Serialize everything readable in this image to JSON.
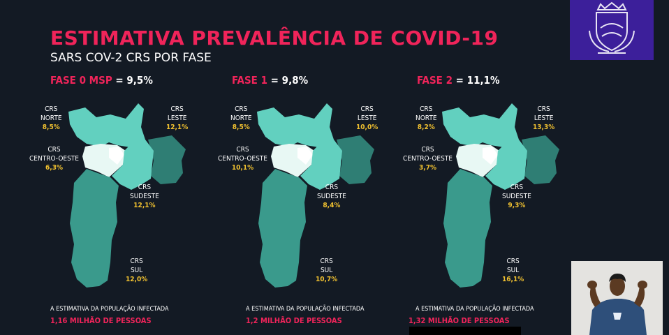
{
  "title": "ESTIMATIVA PREVALÊNCIA DE COVID-19",
  "subtitle": "SARS COV-2 CRS POR FASE",
  "crs": "CRS",
  "region_names": {
    "norte": "NORTE",
    "leste": "LESTE",
    "centro_oeste": "CENTRO-OESTE",
    "sudeste": "SUDESTE",
    "sul": "SUL"
  },
  "footer_caption": "A ESTIMATIVA DA POPULAÇÃO INFECTADA",
  "colors": {
    "accent": "#f0245a",
    "value": "#f2c230",
    "norte": "#62d0bf",
    "leste": "#2f7e74",
    "centro_oeste": "#e8f8f4",
    "sudeste": "#62d0bf",
    "sul": "#3a9a8c",
    "logo_bg": "#3c1f9a"
  },
  "icons": {
    "logo": "city-coat-of-arms-icon"
  },
  "panels": [
    {
      "phase": "FASE 0 MSP",
      "value": " = 9,5%",
      "norte": "8,5%",
      "leste": "12,1%",
      "centro_oeste": "6,3%",
      "sudeste": "12,1%",
      "sul": "12,0%",
      "people": "1,16 MILHÃO DE PESSOAS"
    },
    {
      "phase": "FASE 1",
      "value": " = 9,8%",
      "norte": "8,5%",
      "leste": "10,0%",
      "centro_oeste": "10,1%",
      "sudeste": "8,4%",
      "sul": "10,7%",
      "people": "1,2 MILHÃO DE PESSOAS"
    },
    {
      "phase": "FASE 2",
      "value": " = 11,1%",
      "norte": "8,2%",
      "leste": "13,3%",
      "centro_oeste": "3,7%",
      "sudeste": "9,3%",
      "sul": "16,1%",
      "people": "1,32 MILHÃO DE PESSOAS"
    }
  ]
}
